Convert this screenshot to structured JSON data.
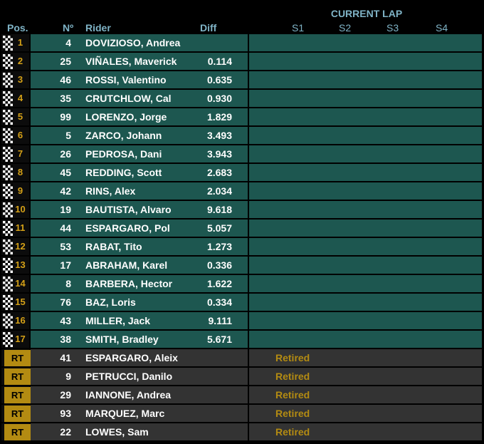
{
  "header": {
    "current_lap": "CURRENT LAP",
    "pos": "Pos.",
    "no": "Nº",
    "rider": "Rider",
    "diff": "Diff",
    "s1": "S1",
    "s2": "S2",
    "s3": "S3",
    "s4": "S4"
  },
  "colors": {
    "accent_gold": "#b38b12",
    "row_teal": "#1d5750",
    "row_retired": "#333333",
    "header_blue": "#7fb3c6"
  },
  "rows": [
    {
      "pos": "1",
      "num": "4",
      "rider": "DOVIZIOSO, Andrea",
      "diff": "",
      "status": ""
    },
    {
      "pos": "2",
      "num": "25",
      "rider": "VIÑALES, Maverick",
      "diff": "0.114",
      "status": ""
    },
    {
      "pos": "3",
      "num": "46",
      "rider": "ROSSI, Valentino",
      "diff": "0.635",
      "status": ""
    },
    {
      "pos": "4",
      "num": "35",
      "rider": "CRUTCHLOW, Cal",
      "diff": "0.930",
      "status": ""
    },
    {
      "pos": "5",
      "num": "99",
      "rider": "LORENZO, Jorge",
      "diff": "1.829",
      "status": ""
    },
    {
      "pos": "6",
      "num": "5",
      "rider": "ZARCO, Johann",
      "diff": "3.493",
      "status": ""
    },
    {
      "pos": "7",
      "num": "26",
      "rider": "PEDROSA, Dani",
      "diff": "3.943",
      "status": ""
    },
    {
      "pos": "8",
      "num": "45",
      "rider": "REDDING, Scott",
      "diff": "2.683",
      "status": ""
    },
    {
      "pos": "9",
      "num": "42",
      "rider": "RINS, Alex",
      "diff": "2.034",
      "status": ""
    },
    {
      "pos": "10",
      "num": "19",
      "rider": "BAUTISTA, Alvaro",
      "diff": "9.618",
      "status": ""
    },
    {
      "pos": "11",
      "num": "44",
      "rider": "ESPARGARO, Pol",
      "diff": "5.057",
      "status": ""
    },
    {
      "pos": "12",
      "num": "53",
      "rider": "RABAT, Tito",
      "diff": "1.273",
      "status": ""
    },
    {
      "pos": "13",
      "num": "17",
      "rider": "ABRAHAM, Karel",
      "diff": "0.336",
      "status": ""
    },
    {
      "pos": "14",
      "num": "8",
      "rider": "BARBERA, Hector",
      "diff": "1.622",
      "status": ""
    },
    {
      "pos": "15",
      "num": "76",
      "rider": "BAZ, Loris",
      "diff": "0.334",
      "status": ""
    },
    {
      "pos": "16",
      "num": "43",
      "rider": "MILLER, Jack",
      "diff": "9.111",
      "status": ""
    },
    {
      "pos": "17",
      "num": "38",
      "rider": "SMITH, Bradley",
      "diff": "5.671",
      "status": ""
    },
    {
      "pos": "RT",
      "num": "41",
      "rider": "ESPARGARO, Aleix",
      "diff": "",
      "status": "Retired"
    },
    {
      "pos": "RT",
      "num": "9",
      "rider": "PETRUCCI, Danilo",
      "diff": "",
      "status": "Retired"
    },
    {
      "pos": "RT",
      "num": "29",
      "rider": "IANNONE, Andrea",
      "diff": "",
      "status": "Retired"
    },
    {
      "pos": "RT",
      "num": "93",
      "rider": "MARQUEZ, Marc",
      "diff": "",
      "status": "Retired"
    },
    {
      "pos": "RT",
      "num": "22",
      "rider": "LOWES, Sam",
      "diff": "",
      "status": "Retired"
    }
  ]
}
